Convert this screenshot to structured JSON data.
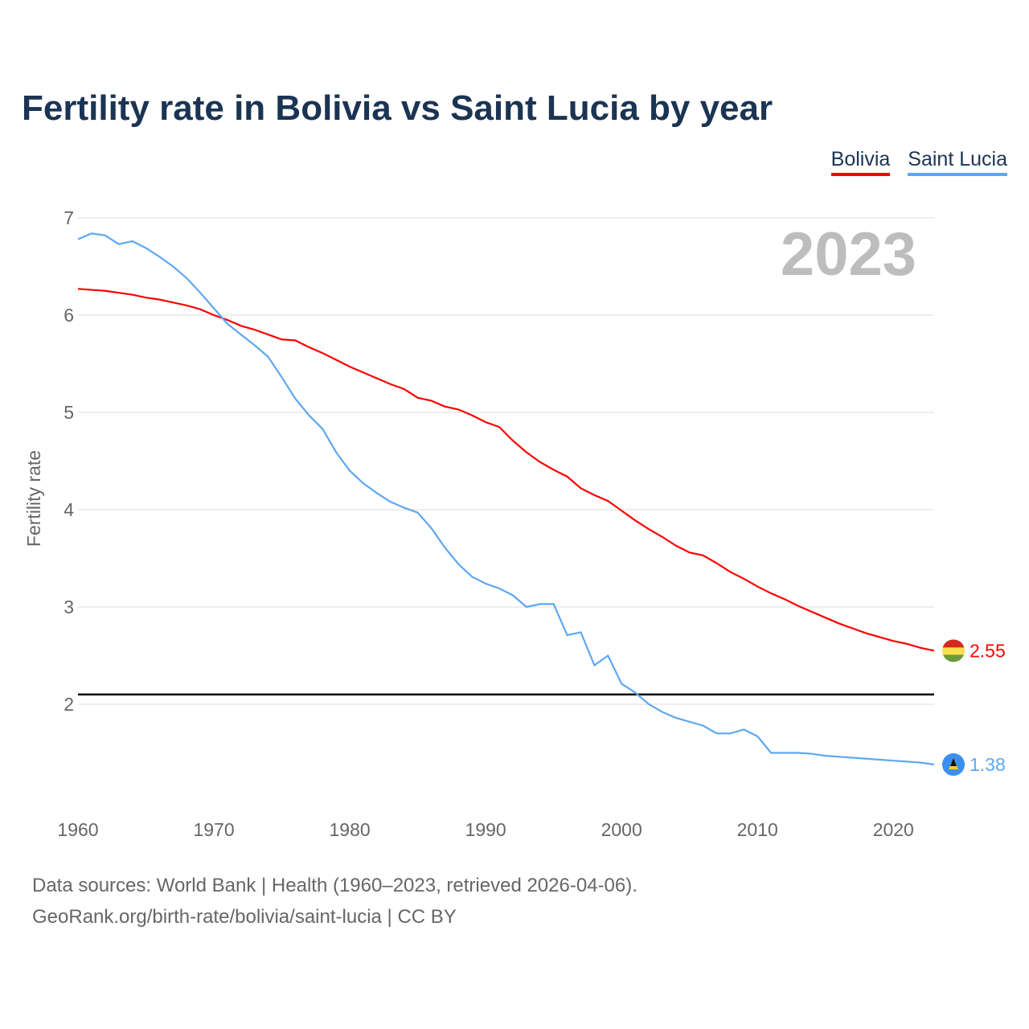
{
  "title": "Fertility rate in Bolivia vs Saint Lucia by year",
  "year_watermark": "2023",
  "footer": {
    "line1": "Data sources: World Bank | Health (1960–2023, retrieved 2026-04-06).",
    "line2": "GeoRank.org/birth-rate/bolivia/saint-lucia | CC BY"
  },
  "colors": {
    "bolivia": "#ff0000",
    "saint_lucia": "#5ea8ee",
    "reference": "#000000"
  },
  "chart_data": {
    "type": "line",
    "title": "Fertility rate in Bolivia vs Saint Lucia by year",
    "xlabel": "",
    "ylabel": "Fertility rate",
    "xlim": [
      1960,
      2023
    ],
    "ylim": [
      1,
      7
    ],
    "x_ticks": [
      "1960",
      "1970",
      "1980",
      "1990",
      "2000",
      "2010",
      "2020"
    ],
    "y_ticks": [
      "2",
      "3",
      "4",
      "5",
      "6",
      "7"
    ],
    "grid": true,
    "legend_position": "top-right",
    "reference_line": 2.1,
    "x": [
      1960,
      1961,
      1962,
      1963,
      1964,
      1965,
      1966,
      1967,
      1968,
      1969,
      1970,
      1971,
      1972,
      1973,
      1974,
      1975,
      1976,
      1977,
      1978,
      1979,
      1980,
      1981,
      1982,
      1983,
      1984,
      1985,
      1986,
      1987,
      1988,
      1989,
      1990,
      1991,
      1992,
      1993,
      1994,
      1995,
      1996,
      1997,
      1998,
      1999,
      2000,
      2001,
      2002,
      2003,
      2004,
      2005,
      2006,
      2007,
      2008,
      2009,
      2010,
      2011,
      2012,
      2013,
      2014,
      2015,
      2016,
      2017,
      2018,
      2019,
      2020,
      2021,
      2022,
      2023
    ],
    "series": [
      {
        "name": "Bolivia",
        "end_label": "2.55",
        "values": [
          6.27,
          6.26,
          6.25,
          6.23,
          6.21,
          6.18,
          6.16,
          6.13,
          6.1,
          6.06,
          6.0,
          5.95,
          5.89,
          5.85,
          5.8,
          5.75,
          5.74,
          5.67,
          5.61,
          5.54,
          5.47,
          5.41,
          5.35,
          5.29,
          5.24,
          5.15,
          5.12,
          5.06,
          5.03,
          4.97,
          4.9,
          4.85,
          4.71,
          4.59,
          4.49,
          4.41,
          4.34,
          4.22,
          4.15,
          4.09,
          3.99,
          3.89,
          3.8,
          3.72,
          3.63,
          3.56,
          3.53,
          3.45,
          3.36,
          3.29,
          3.21,
          3.14,
          3.08,
          3.01,
          2.95,
          2.89,
          2.83,
          2.78,
          2.73,
          2.69,
          2.65,
          2.62,
          2.58,
          2.55
        ]
      },
      {
        "name": "Saint Lucia",
        "end_label": "1.38",
        "values": [
          6.78,
          6.84,
          6.82,
          6.73,
          6.76,
          6.69,
          6.6,
          6.5,
          6.38,
          6.23,
          6.07,
          5.91,
          5.8,
          5.69,
          5.57,
          5.36,
          5.14,
          4.97,
          4.83,
          4.59,
          4.4,
          4.27,
          4.17,
          4.08,
          4.02,
          3.97,
          3.81,
          3.61,
          3.44,
          3.31,
          3.24,
          3.19,
          3.12,
          3.0,
          3.03,
          3.03,
          2.71,
          2.74,
          2.4,
          2.5,
          2.21,
          2.12,
          2.0,
          1.92,
          1.86,
          1.82,
          1.78,
          1.7,
          1.7,
          1.74,
          1.67,
          1.5,
          1.5,
          1.5,
          1.49,
          1.47,
          1.46,
          1.45,
          1.44,
          1.43,
          1.42,
          1.41,
          1.4,
          1.38
        ]
      }
    ]
  }
}
